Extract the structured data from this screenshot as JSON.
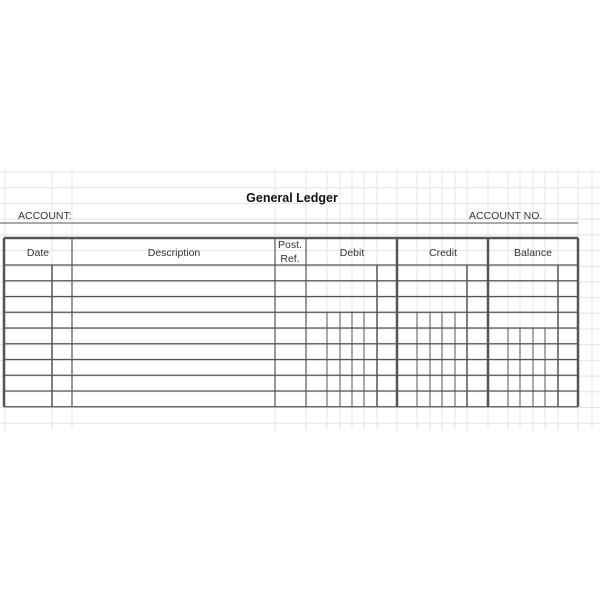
{
  "ledger": {
    "title": "General Ledger",
    "account_label": "ACCOUNT:",
    "account_no_label": "ACCOUNT NO.",
    "columns": {
      "date": "Date",
      "description": "Description",
      "post_ref_line1": "Post.",
      "post_ref_line2": "Ref.",
      "debit": "Debit",
      "credit": "Credit",
      "balance": "Balance"
    },
    "row_count": 9
  },
  "colors": {
    "border": "#555555",
    "gridline": "#e4e4e4",
    "text": "#333333"
  }
}
